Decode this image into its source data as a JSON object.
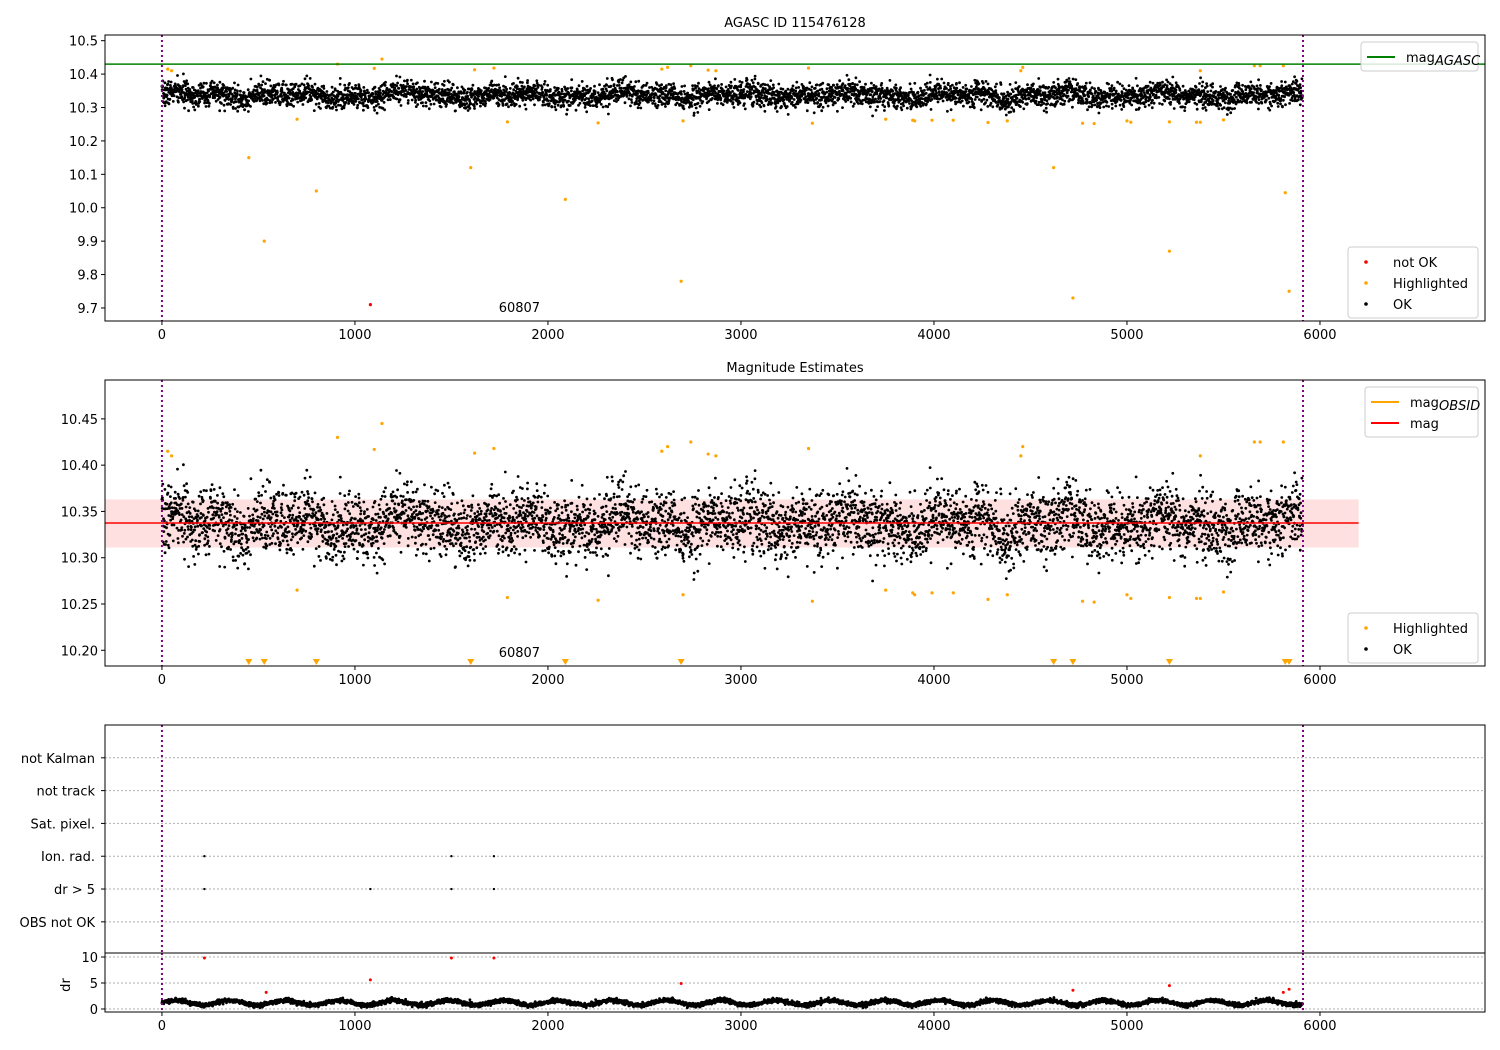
{
  "chart_data": [
    {
      "type": "scatter",
      "title": "AGASC ID 115476128",
      "xlim": [
        -295,
        6855
      ],
      "ylim": [
        9.661,
        10.517
      ],
      "xticks": [
        0,
        1000,
        2000,
        3000,
        4000,
        5000,
        6000
      ],
      "yticks": [
        9.7,
        9.8,
        9.9,
        10.0,
        10.1,
        10.2,
        10.3,
        10.4,
        10.5
      ],
      "ytick_labels": [
        "9.7",
        "9.8",
        "9.9",
        "10.0",
        "10.1",
        "10.2",
        "10.3",
        "10.4",
        "10.5"
      ],
      "vlines": [
        0,
        5912
      ],
      "hline": {
        "name": "mag_AGASC",
        "value": 10.43,
        "color": "#008000"
      },
      "annotation": {
        "text": "60807",
        "x": 2940
      },
      "legend_top": [
        {
          "label": "mag",
          "sub": "AGASC",
          "color": "#008000"
        }
      ],
      "legend_bottom": [
        {
          "label": "not OK",
          "color": "#ff0000"
        },
        {
          "label": "Highlighted",
          "color": "#ffa500"
        },
        {
          "label": "OK",
          "color": "#000000"
        }
      ],
      "not_ok_points": [
        [
          1080,
          9.71
        ]
      ],
      "highlighted_points": [
        [
          450,
          10.15
        ],
        [
          530,
          9.9
        ],
        [
          800,
          10.05
        ],
        [
          1600,
          10.12
        ],
        [
          2090,
          10.025
        ],
        [
          2690,
          9.78
        ],
        [
          4620,
          10.12
        ],
        [
          4720,
          9.73
        ],
        [
          5220,
          9.87
        ],
        [
          5820,
          10.045
        ],
        [
          5840,
          9.75
        ],
        [
          30,
          10.415
        ],
        [
          50,
          10.41
        ],
        [
          910,
          10.43
        ],
        [
          1100,
          10.417
        ],
        [
          1140,
          10.445
        ],
        [
          1620,
          10.413
        ],
        [
          1720,
          10.418
        ],
        [
          2590,
          10.415
        ],
        [
          2620,
          10.42
        ],
        [
          2740,
          10.425
        ],
        [
          2830,
          10.412
        ],
        [
          2870,
          10.41
        ],
        [
          3350,
          10.418
        ],
        [
          4450,
          10.41
        ],
        [
          4460,
          10.42
        ],
        [
          5380,
          10.41
        ],
        [
          5660,
          10.425
        ],
        [
          5690,
          10.425
        ],
        [
          5810,
          10.425
        ],
        [
          700,
          10.265
        ],
        [
          1790,
          10.257
        ],
        [
          2260,
          10.254
        ],
        [
          2700,
          10.26
        ],
        [
          3370,
          10.253
        ],
        [
          3750,
          10.265
        ],
        [
          3890,
          10.262
        ],
        [
          3900,
          10.26
        ],
        [
          3990,
          10.262
        ],
        [
          4100,
          10.262
        ],
        [
          4280,
          10.255
        ],
        [
          4380,
          10.26
        ],
        [
          4770,
          10.253
        ],
        [
          4830,
          10.252
        ],
        [
          5000,
          10.26
        ],
        [
          5020,
          10.256
        ],
        [
          5220,
          10.257
        ],
        [
          5360,
          10.256
        ],
        [
          5380,
          10.256
        ],
        [
          5500,
          10.263
        ]
      ],
      "ok_series": {
        "n": 5000,
        "x_range": [
          0,
          5910
        ],
        "mean": 10.337,
        "std": 0.02,
        "seed": 7
      }
    },
    {
      "type": "scatter",
      "title": "Magnitude Estimates",
      "xlim": [
        -295,
        6855
      ],
      "ylim": [
        10.183,
        10.492
      ],
      "xticks": [
        0,
        1000,
        2000,
        3000,
        4000,
        5000,
        6000
      ],
      "yticks": [
        10.2,
        10.25,
        10.3,
        10.35,
        10.4,
        10.45
      ],
      "ytick_labels": [
        "10.20",
        "10.25",
        "10.30",
        "10.35",
        "10.40",
        "10.45"
      ],
      "vlines": [
        0,
        5912
      ],
      "mag_line": {
        "value": 10.3375,
        "x_range": [
          -295,
          6200
        ],
        "color": "#ff0000"
      },
      "mag_band": {
        "low": 10.311,
        "high": 10.363,
        "color": "#ffcccc"
      },
      "annotation": {
        "text": "60807",
        "x": 2940
      },
      "legend_top": [
        {
          "label": "mag",
          "sub": "OBSID",
          "color": "#ffa500"
        },
        {
          "label": "mag",
          "sub": "",
          "color": "#ff0000"
        }
      ],
      "legend_bottom": [
        {
          "label": "Highlighted",
          "color": "#ffa500"
        },
        {
          "label": "OK",
          "color": "#000000"
        }
      ],
      "offscale_markers_x": [
        450,
        530,
        800,
        1600,
        2090,
        2690,
        4620,
        4720,
        5220,
        5820,
        5840
      ]
    },
    {
      "type": "scatter",
      "title": "",
      "xlim": [
        -295,
        6855
      ],
      "categories": [
        "OBS not OK",
        "dr > 5",
        "Ion. rad.",
        "Sat. pixel.",
        "not track",
        "not Kalman"
      ],
      "flag_points": [
        [
          220,
          1
        ],
        [
          220,
          2
        ],
        [
          1080,
          1
        ],
        [
          1500,
          1
        ],
        [
          1500,
          2
        ],
        [
          1720,
          1
        ],
        [
          1720,
          2
        ]
      ],
      "vlines": [
        0,
        5912
      ]
    },
    {
      "type": "scatter",
      "ylabel": "dr",
      "xlim": [
        -295,
        6855
      ],
      "ylim": [
        -0.58,
        10.77
      ],
      "xticks": [
        0,
        1000,
        2000,
        3000,
        4000,
        5000,
        6000
      ],
      "yticks": [
        0,
        5,
        10
      ],
      "ytick_labels": [
        "0",
        "5",
        "10"
      ],
      "red_points": [
        [
          220,
          9.8
        ],
        [
          540,
          3.2
        ],
        [
          1080,
          5.6
        ],
        [
          1500,
          9.8
        ],
        [
          1720,
          9.8
        ],
        [
          2690,
          4.9
        ],
        [
          4720,
          3.6
        ],
        [
          5220,
          4.5
        ],
        [
          5810,
          3.2
        ],
        [
          5840,
          3.8
        ]
      ],
      "ok_series": {
        "n": 5000,
        "x_range": [
          0,
          5910
        ],
        "mean": 1.2,
        "std": 0.4,
        "seed": 11
      },
      "vlines": [
        0,
        5912
      ]
    }
  ]
}
